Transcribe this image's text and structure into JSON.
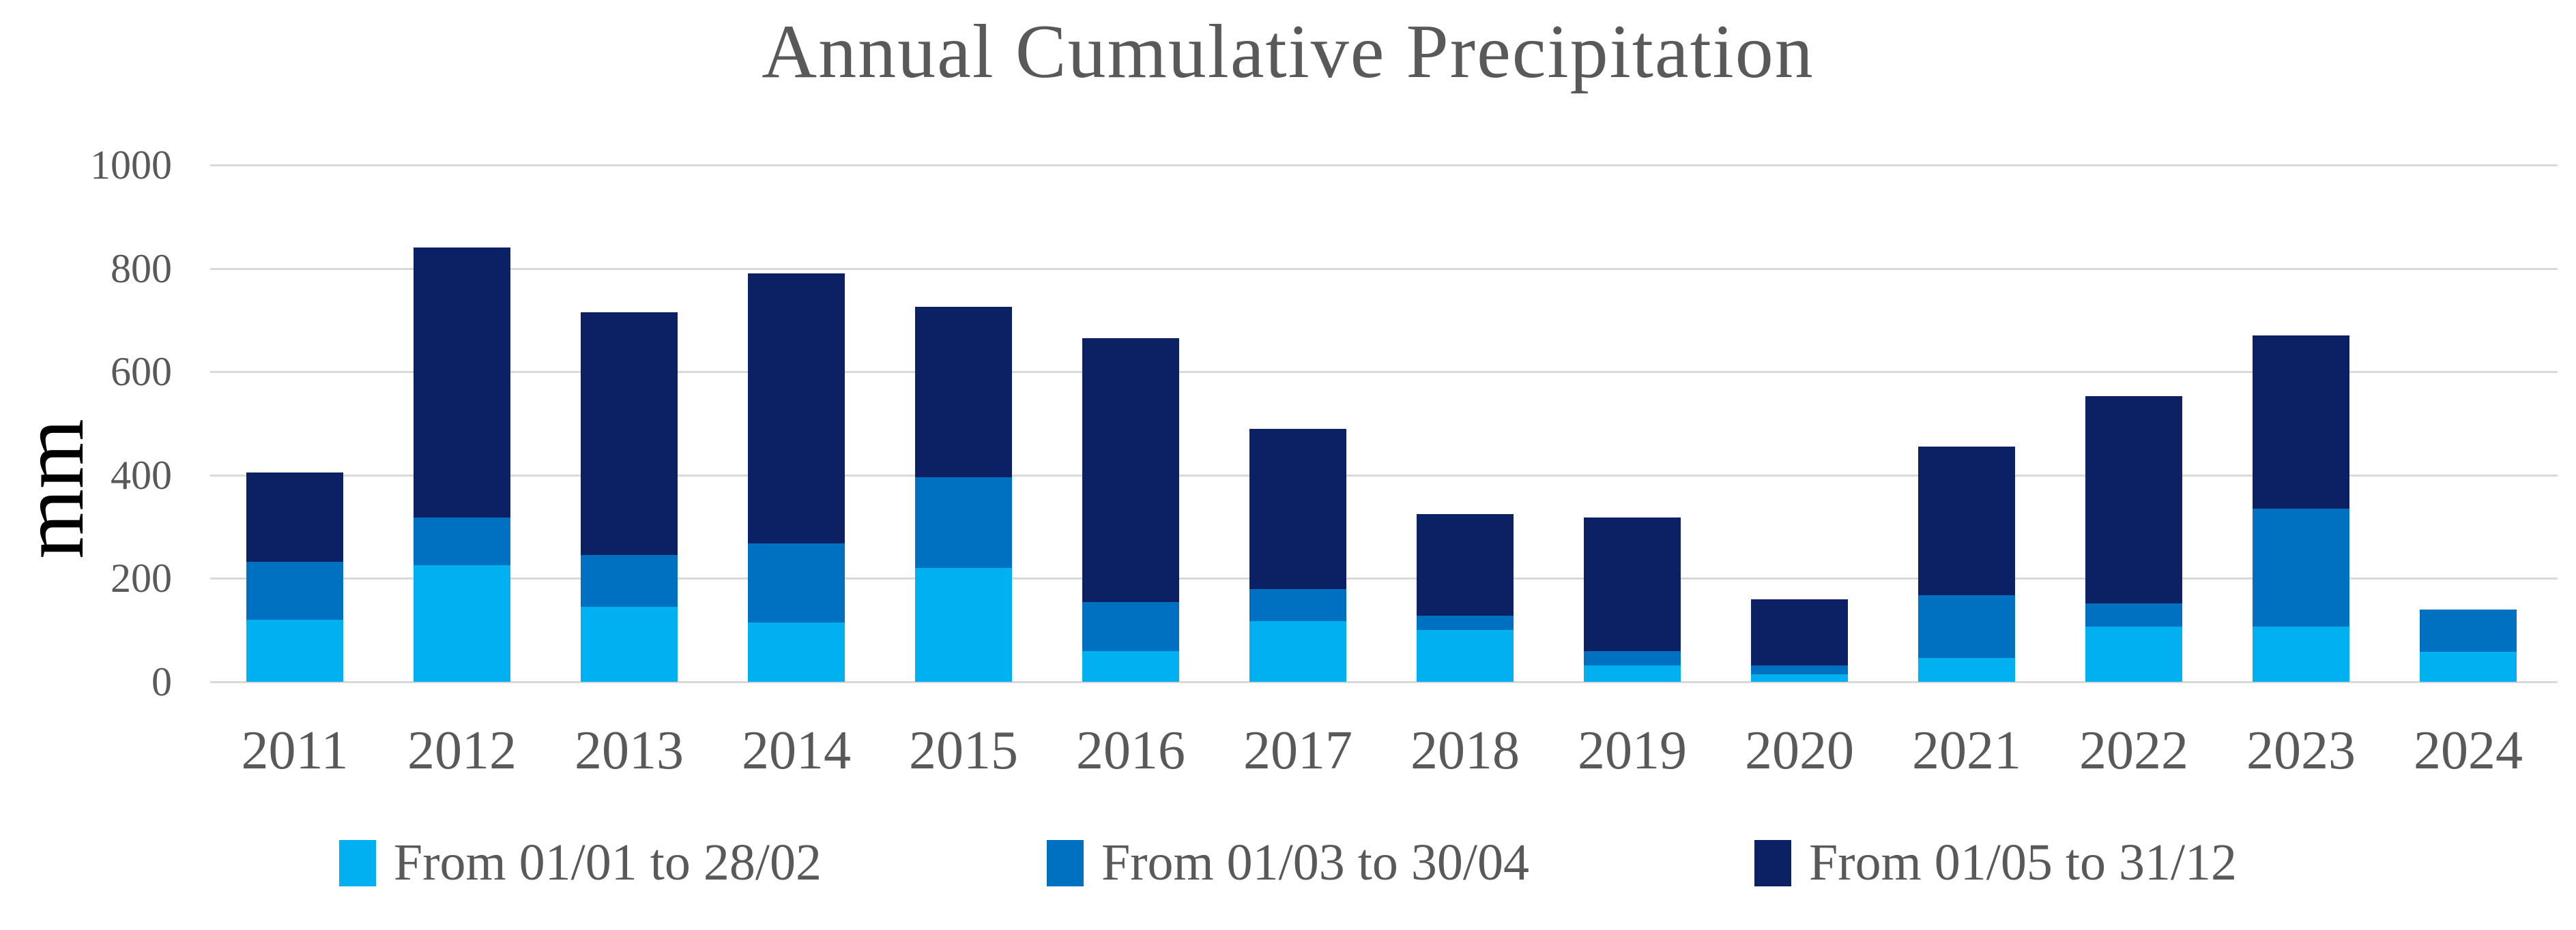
{
  "page": {
    "background": "#FFFFFF"
  },
  "title": "Annual Cumulative Precipitation",
  "chart_data": {
    "type": "bar",
    "stacked": true,
    "title": "Annual Cumulative Precipitation",
    "xlabel": "",
    "ylabel": "mm",
    "ylim": [
      0,
      1000
    ],
    "yticks": [
      0,
      200,
      400,
      600,
      800,
      1000
    ],
    "grid": true,
    "legend_position": "bottom",
    "categories": [
      "2011",
      "2012",
      "2013",
      "2014",
      "2015",
      "2016",
      "2017",
      "2018",
      "2019",
      "2020",
      "2021",
      "2022",
      "2023",
      "2024"
    ],
    "series": [
      {
        "name": "From 01/01 to 28/02",
        "color": "#00B0F0",
        "values": [
          120,
          225,
          145,
          115,
          220,
          60,
          118,
          100,
          32,
          15,
          46,
          107,
          107,
          58
        ]
      },
      {
        "name": "From 01/03 to 30/04",
        "color": "#0070C0",
        "values": [
          112,
          93,
          100,
          153,
          176,
          95,
          62,
          28,
          28,
          17,
          122,
          45,
          228,
          82
        ]
      },
      {
        "name": "From 01/05 to 31/12",
        "color": "#0C2163",
        "values": [
          173,
          522,
          470,
          522,
          329,
          510,
          310,
          197,
          258,
          128,
          287,
          401,
          335,
          0
        ]
      }
    ]
  },
  "colors": {
    "gridline": "#D9D9D9",
    "axis_text": "#595959",
    "title_text": "#595959",
    "ylabel_text": "#000000"
  }
}
